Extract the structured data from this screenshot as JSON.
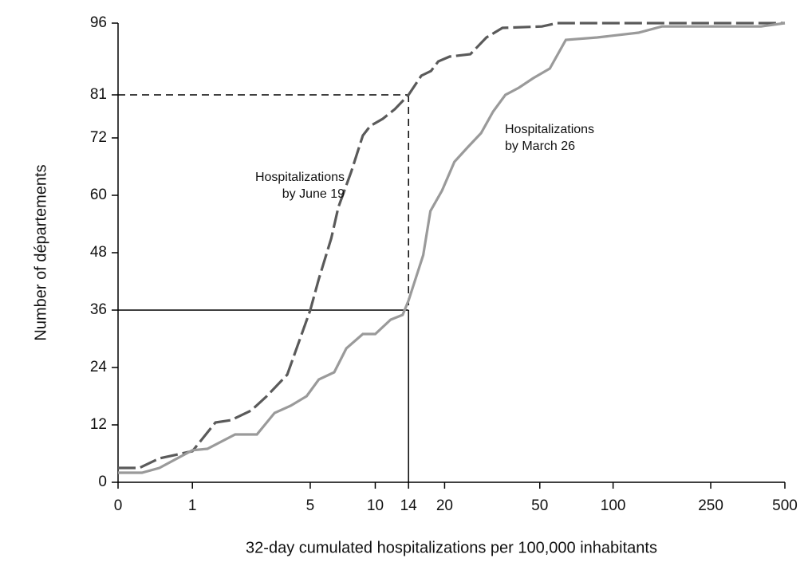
{
  "chart_data": {
    "type": "line",
    "xlabel": "32-day cumulated hospitalizations per 100,000 inhabitants",
    "ylabel": "Number of départements",
    "xscale": "log1p",
    "xlim": [
      0,
      500
    ],
    "xticks": [
      0,
      1,
      5,
      10,
      14,
      20,
      50,
      100,
      250,
      500
    ],
    "ylim": [
      0,
      96
    ],
    "yticks": [
      0,
      12,
      24,
      36,
      48,
      60,
      72,
      81,
      96
    ],
    "reference_lines": [
      {
        "x": 14,
        "y": 81,
        "style": "dashed"
      },
      {
        "x": 14,
        "y": 36,
        "style": "solid"
      }
    ],
    "series": [
      {
        "name": "Hospitalizations by June 19",
        "color": "#5a5a5a",
        "style": "dashed",
        "x": [
          0,
          0.22,
          0.47,
          1,
          1.48,
          1.87,
          2.46,
          3.0,
          3.84,
          5,
          5.5,
          6.3,
          6.8,
          7.8,
          8.8,
          9.5,
          10.8,
          12.2,
          14,
          15.9,
          17.5,
          18.8,
          21,
          25.7,
          30,
          35,
          51,
          59,
          500
        ],
        "values": [
          3,
          3,
          5,
          6.5,
          12.5,
          13,
          15,
          18,
          22.5,
          36,
          42.5,
          51,
          57.5,
          65,
          72.5,
          74.5,
          76,
          78,
          81,
          85,
          86,
          88,
          89,
          89.5,
          93,
          95,
          95.3,
          96,
          96
        ]
      },
      {
        "name": "Hospitalizations by March 26",
        "color": "#9a9a9a",
        "style": "solid",
        "x": [
          0,
          0.25,
          0.47,
          1,
          1.3,
          1.98,
          2.65,
          3.3,
          4.0,
          4.8,
          5.5,
          6.5,
          7.4,
          8.8,
          10,
          11.7,
          13.2,
          14,
          16.2,
          17.4,
          19.5,
          22,
          25,
          28.5,
          32,
          36,
          41,
          47,
          55,
          64,
          86,
          127,
          158,
          400,
          500
        ],
        "values": [
          2,
          2,
          3,
          6.7,
          7,
          10,
          10,
          14.5,
          16,
          18,
          21.5,
          23,
          28,
          31,
          31,
          34,
          35,
          38,
          47.5,
          56.7,
          61,
          67,
          70,
          73,
          77.5,
          81,
          82.5,
          84.5,
          86.5,
          92.5,
          93,
          94,
          95.3,
          95.3,
          96
        ]
      }
    ],
    "annotations": [
      {
        "series": 0,
        "lines": [
          "Hospitalizations",
          "by June 19"
        ]
      },
      {
        "series": 1,
        "lines": [
          "Hospitalizations",
          "by March 26"
        ]
      }
    ]
  }
}
